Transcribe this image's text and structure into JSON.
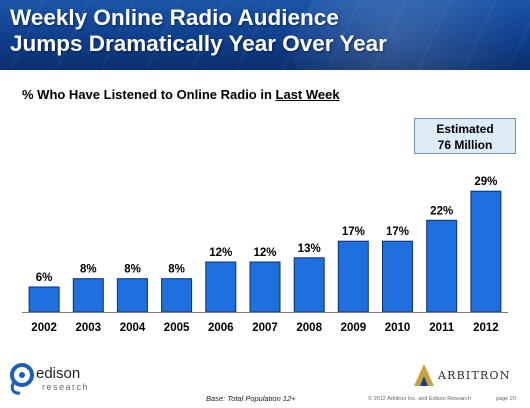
{
  "header": {
    "title_line1": "Weekly Online Radio Audience",
    "title_line2": "Jumps Dramatically Year Over Year"
  },
  "subtitle": {
    "prefix": "% Who Have Listened to Online Radio in ",
    "emphasis": "Last Week"
  },
  "callout": {
    "line1": "Estimated",
    "line2": "76 Million"
  },
  "colors": {
    "bar_fill": "#1f6fde",
    "bar_stroke": "#0b2f72",
    "banner": "#0f3f8c"
  },
  "chart_data": {
    "type": "bar",
    "categories": [
      "2002",
      "2003",
      "2004",
      "2005",
      "2006",
      "2007",
      "2008",
      "2009",
      "2010",
      "2011",
      "2012"
    ],
    "values": [
      6,
      8,
      8,
      8,
      12,
      12,
      13,
      17,
      17,
      22,
      29
    ],
    "value_suffix": "%",
    "title": "% Who Have Listened to Online Radio in Last Week",
    "xlabel": "",
    "ylabel": "",
    "ylim": [
      0,
      30
    ],
    "grid": false,
    "legend": "none"
  },
  "footer": {
    "edison_name": "edison",
    "edison_sub": "research",
    "arbitron_name": "ARBITRON",
    "base_note": "Base: Total Population 12+",
    "copyright": "© 2012 Arbitron Inc. and Edison Research",
    "page": "page 20"
  },
  "icons": {
    "edison_logo": "edison-logo-icon",
    "arbitron_logo": "arbitron-logo-icon"
  }
}
